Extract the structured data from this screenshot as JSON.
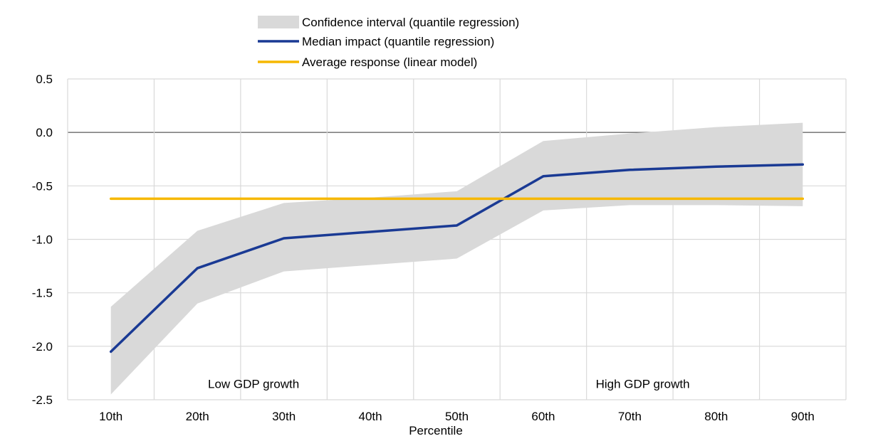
{
  "chart_data": {
    "type": "line",
    "categories": [
      "10th",
      "20th",
      "30th",
      "40th",
      "50th",
      "60th",
      "70th",
      "80th",
      "90th"
    ],
    "xlabel": "Percentile",
    "ylabel": "",
    "ylim": [
      -2.5,
      0.5
    ],
    "yticks": [
      0.5,
      0.0,
      -0.5,
      -1.0,
      -1.5,
      -2.0,
      -2.5
    ],
    "ytick_labels": [
      "0.5",
      "0.0",
      "-0.5",
      "-1.0",
      "-1.5",
      "-2.0",
      "-2.5"
    ],
    "grid": true,
    "legend_position": "top-center",
    "band": {
      "name": "Confidence interval (quantile regression)",
      "color": "#d9d9d9",
      "lower": [
        -2.45,
        -1.6,
        -1.3,
        -1.24,
        -1.18,
        -0.73,
        -0.68,
        -0.68,
        -0.69
      ],
      "upper": [
        -1.63,
        -0.92,
        -0.66,
        -0.61,
        -0.55,
        -0.08,
        -0.01,
        0.05,
        0.09
      ]
    },
    "series": [
      {
        "name": "Median impact (quantile regression)",
        "color": "#1a3a94",
        "values": [
          -2.05,
          -1.27,
          -0.99,
          -0.93,
          -0.87,
          -0.41,
          -0.35,
          -0.32,
          -0.3
        ]
      },
      {
        "name": "Average response (linear model)",
        "color": "#f6b800",
        "values": [
          -0.62,
          -0.62,
          -0.62,
          -0.62,
          -0.62,
          -0.62,
          -0.62,
          -0.62,
          -0.62
        ]
      }
    ],
    "annotations": [
      {
        "text": "Low GDP growth",
        "x": 2.15,
        "y": -2.35
      },
      {
        "text": "High GDP growth",
        "x": 6.65,
        "y": -2.35
      }
    ]
  }
}
